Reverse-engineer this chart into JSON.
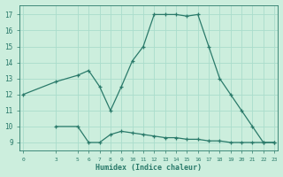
{
  "title": "",
  "xlabel": "Humidex (Indice chaleur)",
  "background_color": "#cceedd",
  "line_color": "#2a7a6a",
  "grid_color": "#aaddcc",
  "xticks": [
    0,
    3,
    5,
    6,
    7,
    8,
    9,
    10,
    11,
    12,
    13,
    14,
    15,
    16,
    17,
    18,
    19,
    20,
    21,
    22,
    23
  ],
  "yticks": [
    9,
    10,
    11,
    12,
    13,
    14,
    15,
    16,
    17
  ],
  "xlim": [
    -0.3,
    23.3
  ],
  "ylim": [
    8.5,
    17.6
  ],
  "series1_x": [
    0,
    3,
    5,
    6,
    7,
    8,
    9,
    10,
    11,
    12,
    13,
    14,
    15,
    16,
    17,
    18,
    19,
    20,
    21,
    22,
    23
  ],
  "series1_y": [
    12,
    12.8,
    13.2,
    13.5,
    12.5,
    11.0,
    12.5,
    14.1,
    15.0,
    17.0,
    17.0,
    17.0,
    16.9,
    17.0,
    15.0,
    13.0,
    12.0,
    11.0,
    10.0,
    9.0,
    9.0
  ],
  "series2_x": [
    3,
    5,
    6,
    7,
    8,
    9,
    10,
    11,
    12,
    13,
    14,
    15,
    16,
    17,
    18,
    19,
    20,
    21,
    22,
    23
  ],
  "series2_y": [
    10.0,
    10.0,
    9.0,
    9.0,
    9.5,
    9.7,
    9.6,
    9.5,
    9.4,
    9.3,
    9.3,
    9.2,
    9.2,
    9.1,
    9.1,
    9.0,
    9.0,
    9.0,
    9.0,
    9.0
  ]
}
